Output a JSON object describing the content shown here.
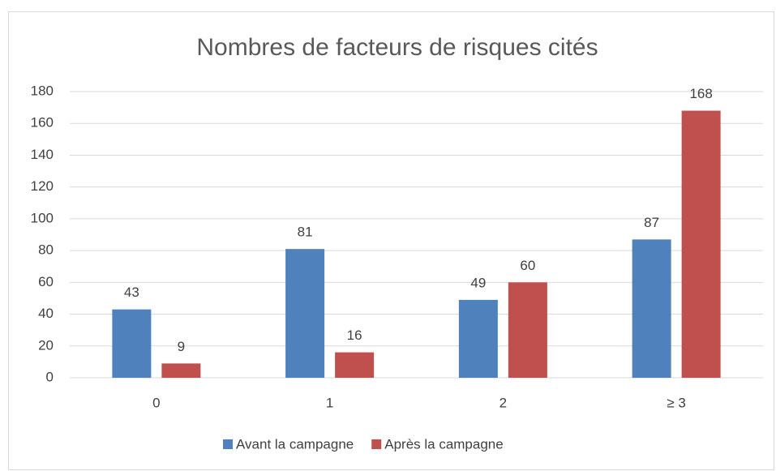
{
  "chart_data": {
    "type": "bar",
    "title": "Nombres de facteurs de risques cités",
    "categories": [
      "0",
      "1",
      "2",
      "≥ 3"
    ],
    "series": [
      {
        "name": "Avant la campagne",
        "color": "#4f81bd",
        "values": [
          43,
          81,
          49,
          87
        ]
      },
      {
        "name": "Après la campagne",
        "color": "#c0504d",
        "values": [
          9,
          16,
          60,
          168
        ]
      }
    ],
    "ylim": [
      0,
      180
    ],
    "yticks": [
      0,
      20,
      40,
      60,
      80,
      100,
      120,
      140,
      160,
      180
    ],
    "grid": true,
    "legend": "bottom"
  }
}
